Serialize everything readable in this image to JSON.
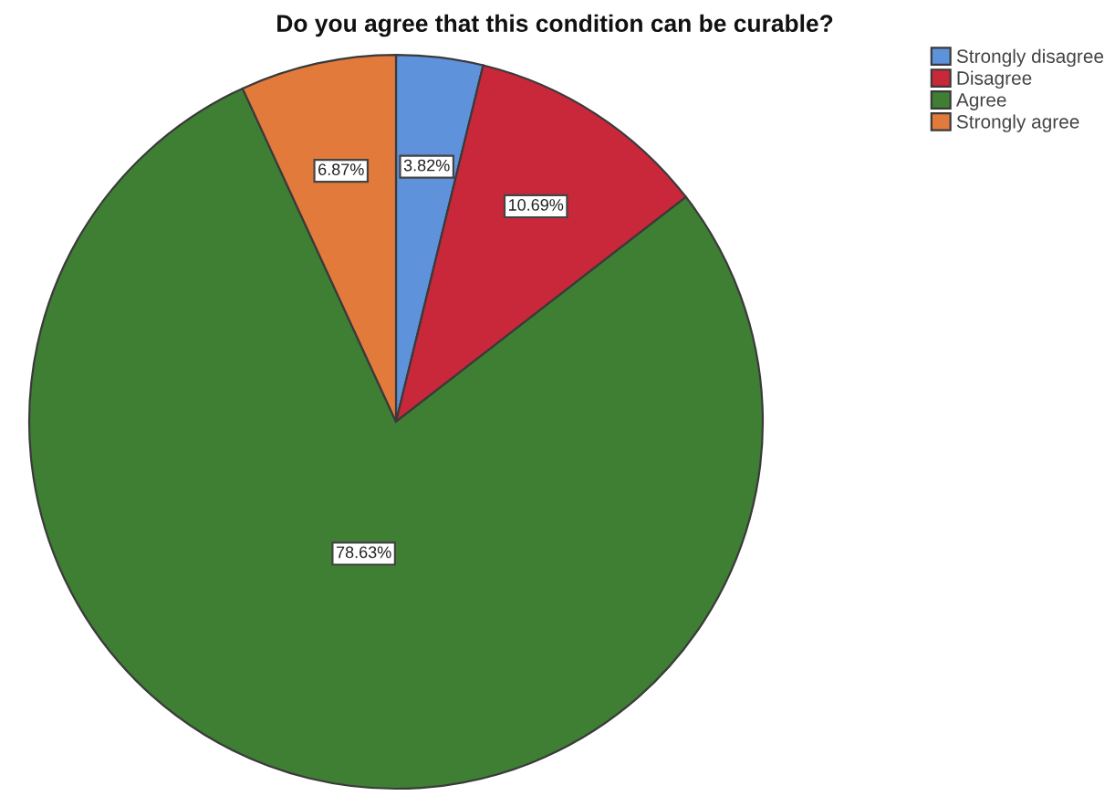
{
  "chart_data": {
    "type": "pie",
    "title": "Do you agree that this condition can be curable?",
    "categories": [
      "Strongly disagree",
      "Disagree",
      "Agree",
      "Strongly agree"
    ],
    "values": [
      3.82,
      10.69,
      78.63,
      6.87
    ],
    "colors": [
      "#5e93dc",
      "#c8283a",
      "#3f7f34",
      "#e27a3c"
    ],
    "value_labels": [
      "3.82%",
      "10.69%",
      "78.63%",
      "6.87%"
    ],
    "legend": "top right"
  }
}
